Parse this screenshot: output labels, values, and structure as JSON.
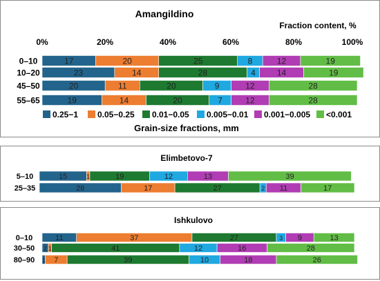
{
  "colors": {
    "fractions": [
      "#23648c",
      "#ed7d31",
      "#1e7a30",
      "#20a8e0",
      "#b13db4",
      "#62bd46"
    ],
    "panel_border": "#8a8a8a",
    "background": "#ffffff",
    "bar_text": "#222222"
  },
  "chart_data": [
    {
      "type": "bar",
      "orientation": "horizontal",
      "stacked": true,
      "title": "Amangildino",
      "xlabel_top": "Fraction content, %",
      "x_ticks": [
        "0%",
        "20%",
        "40%",
        "60%",
        "80%",
        "100%"
      ],
      "xlim": [
        0,
        100
      ],
      "categories": [
        "0–10",
        "10–20",
        "45–50",
        "55–65"
      ],
      "series": [
        {
          "name": "0.25−1",
          "values": [
            17,
            23,
            20,
            19
          ]
        },
        {
          "name": "0.05−0.25",
          "values": [
            20,
            14,
            11,
            14
          ]
        },
        {
          "name": "0.01−0.05",
          "values": [
            25,
            28,
            20,
            20
          ]
        },
        {
          "name": "0.005−0.01",
          "values": [
            8,
            4,
            9,
            7
          ]
        },
        {
          "name": "0.001−0.005",
          "values": [
            12,
            14,
            12,
            12
          ]
        },
        {
          "name": "<0.001",
          "values": [
            19,
            19,
            28,
            28
          ]
        }
      ],
      "legend_title": "Grain-size fractions, mm",
      "legend_position": "bottom"
    },
    {
      "type": "bar",
      "orientation": "horizontal",
      "stacked": true,
      "title": "Elimbetovo-7",
      "xlim": [
        0,
        100
      ],
      "categories": [
        "5–10",
        "25–35"
      ],
      "series": [
        {
          "name": "0.25−1",
          "values": [
            15,
            26
          ]
        },
        {
          "name": "0.05−0.25",
          "values": [
            1,
            17
          ]
        },
        {
          "name": "0.01−0.05",
          "values": [
            19,
            27
          ]
        },
        {
          "name": "0.005−0.01",
          "values": [
            12,
            2
          ]
        },
        {
          "name": "0.001−0.005",
          "values": [
            13,
            11
          ]
        },
        {
          "name": "<0.001",
          "values": [
            39,
            17
          ]
        }
      ]
    },
    {
      "type": "bar",
      "orientation": "horizontal",
      "stacked": true,
      "title": "Ishkulovo",
      "xlim": [
        0,
        100
      ],
      "categories": [
        "0–10",
        "30–50",
        "80–90"
      ],
      "series": [
        {
          "name": "0.25−1",
          "values": [
            11,
            2,
            1
          ]
        },
        {
          "name": "0.05−0.25",
          "values": [
            37,
            1,
            7
          ]
        },
        {
          "name": "0.01−0.05",
          "values": [
            27,
            41,
            39
          ]
        },
        {
          "name": "0.005−0.01",
          "values": [
            3,
            12,
            10
          ]
        },
        {
          "name": "0.001−0.005",
          "values": [
            9,
            16,
            18
          ]
        },
        {
          "name": "<0.001",
          "values": [
            13,
            28,
            26
          ]
        }
      ]
    }
  ]
}
